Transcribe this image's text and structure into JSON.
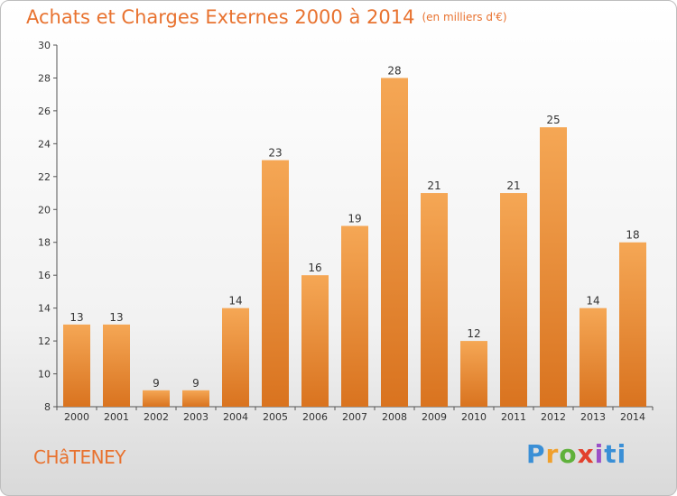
{
  "header": {
    "title": "Achats et Charges Externes 2000 à 2014",
    "subtitle": "(en milliers d'€)"
  },
  "footer": {
    "location": "CHâTENEY",
    "brand_letters": [
      "P",
      "r",
      "o",
      "x",
      "i",
      "t",
      "i"
    ]
  },
  "colors": {
    "accent": "#e8722f",
    "bar_top": "#f5a755",
    "bar_bottom": "#d9731f"
  },
  "chart_data": {
    "type": "bar",
    "title": "Achats et Charges Externes 2000 à 2014",
    "subtitle": "(en milliers d'€)",
    "categories": [
      "2000",
      "2001",
      "2002",
      "2003",
      "2004",
      "2005",
      "2006",
      "2007",
      "2008",
      "2009",
      "2010",
      "2011",
      "2012",
      "2013",
      "2014"
    ],
    "values": [
      13,
      13,
      9,
      9,
      14,
      23,
      16,
      19,
      28,
      21,
      12,
      21,
      25,
      14,
      18
    ],
    "ylim": [
      8,
      30
    ],
    "yticks": [
      8,
      10,
      12,
      14,
      16,
      18,
      20,
      22,
      24,
      26,
      28,
      30
    ],
    "xlabel": "",
    "ylabel": "",
    "grid": false,
    "legend": "none"
  }
}
